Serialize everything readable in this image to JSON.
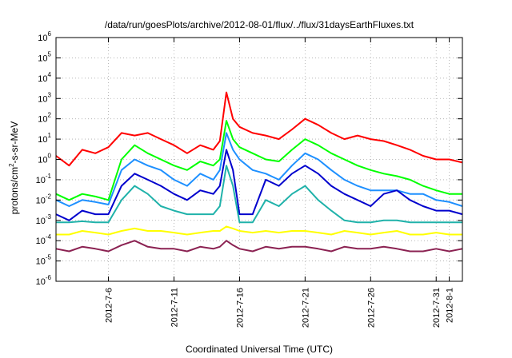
{
  "chart_data": {
    "type": "line",
    "title": "/data/run/goesPlots/archive/2012-08-01/flux/../flux/31daysEarthFluxes.txt",
    "xlabel": "Coordinated Universal Time (UTC)",
    "ylabel_parts": {
      "base": "protons/cm",
      "sup": "2",
      "rest": "-s-sr-MeV"
    },
    "y_scale": "log",
    "ylim": [
      1e-06,
      1000000.0
    ],
    "y_ticks": [
      {
        "value": 1e-06,
        "base": "10",
        "exp": "-6"
      },
      {
        "value": 1e-05,
        "base": "10",
        "exp": "-5"
      },
      {
        "value": 0.0001,
        "base": "10",
        "exp": "-4"
      },
      {
        "value": 0.001,
        "base": "10",
        "exp": "-3"
      },
      {
        "value": 0.01,
        "base": "10",
        "exp": "-2"
      },
      {
        "value": 0.1,
        "base": "10",
        "exp": "-1"
      },
      {
        "value": 1,
        "base": "10",
        "exp": "0"
      },
      {
        "value": 10.0,
        "base": "10",
        "exp": "1"
      },
      {
        "value": 100.0,
        "base": "10",
        "exp": "2"
      },
      {
        "value": 1000.0,
        "base": "10",
        "exp": "3"
      },
      {
        "value": 10000.0,
        "base": "10",
        "exp": "4"
      },
      {
        "value": 100000.0,
        "base": "10",
        "exp": "5"
      },
      {
        "value": 1000000.0,
        "base": "10",
        "exp": "6"
      }
    ],
    "xlim": [
      "2012-07-02",
      "2012-08-02"
    ],
    "x_ticks": [
      "2012-7-6",
      "2012-7-11",
      "2012-7-16",
      "2012-7-21",
      "2012-7-26",
      "2012-7-31",
      "2012-8-1"
    ],
    "grid": true,
    "series": [
      {
        "color": "#ff0000",
        "x": [
          "2012-07-02",
          "2012-07-03",
          "2012-07-04",
          "2012-07-05",
          "2012-07-06",
          "2012-07-07",
          "2012-07-08",
          "2012-07-09",
          "2012-07-10",
          "2012-07-11",
          "2012-07-12",
          "2012-07-13",
          "2012-07-14",
          "2012-07-14T12:00",
          "2012-07-15",
          "2012-07-15T12:00",
          "2012-07-16",
          "2012-07-17",
          "2012-07-18",
          "2012-07-19",
          "2012-07-20",
          "2012-07-21",
          "2012-07-22",
          "2012-07-23",
          "2012-07-24",
          "2012-07-25",
          "2012-07-26",
          "2012-07-27",
          "2012-07-28",
          "2012-07-29",
          "2012-07-30",
          "2012-07-31",
          "2012-08-01",
          "2012-08-02"
        ],
        "y": [
          1.5,
          0.5,
          3,
          2,
          4,
          20,
          15,
          20,
          10,
          5,
          2,
          5,
          3,
          8,
          2000,
          100,
          40,
          20,
          15,
          10,
          30,
          100,
          50,
          20,
          10,
          15,
          10,
          8,
          5,
          3,
          1.5,
          1,
          1,
          0.7
        ]
      },
      {
        "color": "#00ff00",
        "x": [
          "2012-07-02",
          "2012-07-03",
          "2012-07-04",
          "2012-07-05",
          "2012-07-06",
          "2012-07-07",
          "2012-07-08",
          "2012-07-09",
          "2012-07-10",
          "2012-07-11",
          "2012-07-12",
          "2012-07-13",
          "2012-07-14",
          "2012-07-14T12:00",
          "2012-07-15",
          "2012-07-15T12:00",
          "2012-07-16",
          "2012-07-17",
          "2012-07-18",
          "2012-07-19",
          "2012-07-20",
          "2012-07-21",
          "2012-07-22",
          "2012-07-23",
          "2012-07-24",
          "2012-07-25",
          "2012-07-26",
          "2012-07-27",
          "2012-07-28",
          "2012-07-29",
          "2012-07-30",
          "2012-07-31",
          "2012-08-01",
          "2012-08-02"
        ],
        "y": [
          0.02,
          0.01,
          0.02,
          0.015,
          0.01,
          1,
          5,
          2,
          1,
          0.5,
          0.3,
          0.8,
          0.5,
          1,
          80,
          10,
          4,
          2,
          1,
          0.8,
          3,
          10,
          5,
          2,
          1,
          0.5,
          0.3,
          0.2,
          0.15,
          0.1,
          0.05,
          0.03,
          0.02,
          0.02
        ]
      },
      {
        "color": "#1e90ff",
        "x": [
          "2012-07-02",
          "2012-07-03",
          "2012-07-04",
          "2012-07-05",
          "2012-07-06",
          "2012-07-07",
          "2012-07-08",
          "2012-07-09",
          "2012-07-10",
          "2012-07-11",
          "2012-07-12",
          "2012-07-13",
          "2012-07-14",
          "2012-07-14T12:00",
          "2012-07-15",
          "2012-07-15T12:00",
          "2012-07-16",
          "2012-07-17",
          "2012-07-18",
          "2012-07-19",
          "2012-07-20",
          "2012-07-21",
          "2012-07-22",
          "2012-07-23",
          "2012-07-24",
          "2012-07-25",
          "2012-07-26",
          "2012-07-27",
          "2012-07-28",
          "2012-07-29",
          "2012-07-30",
          "2012-07-31",
          "2012-08-01",
          "2012-08-02"
        ],
        "y": [
          0.01,
          0.005,
          0.01,
          0.008,
          0.006,
          0.3,
          1,
          0.5,
          0.3,
          0.1,
          0.05,
          0.2,
          0.1,
          0.3,
          20,
          3,
          1,
          0.3,
          0.2,
          0.1,
          0.5,
          2,
          1,
          0.3,
          0.1,
          0.05,
          0.03,
          0.03,
          0.03,
          0.02,
          0.02,
          0.01,
          0.008,
          0.005
        ]
      },
      {
        "color": "#0000cd",
        "x": [
          "2012-07-02",
          "2012-07-03",
          "2012-07-04",
          "2012-07-05",
          "2012-07-06",
          "2012-07-07",
          "2012-07-08",
          "2012-07-09",
          "2012-07-10",
          "2012-07-11",
          "2012-07-12",
          "2012-07-13",
          "2012-07-14",
          "2012-07-14T12:00",
          "2012-07-15",
          "2012-07-15T12:00",
          "2012-07-16",
          "2012-07-17",
          "2012-07-18",
          "2012-07-19",
          "2012-07-20",
          "2012-07-21",
          "2012-07-22",
          "2012-07-23",
          "2012-07-24",
          "2012-07-25",
          "2012-07-26",
          "2012-07-27",
          "2012-07-28",
          "2012-07-29",
          "2012-07-30",
          "2012-07-31",
          "2012-08-01",
          "2012-08-02"
        ],
        "y": [
          0.002,
          0.001,
          0.003,
          0.002,
          0.002,
          0.05,
          0.2,
          0.1,
          0.05,
          0.02,
          0.01,
          0.03,
          0.02,
          0.05,
          3,
          0.3,
          0.002,
          0.002,
          0.1,
          0.05,
          0.2,
          0.5,
          0.2,
          0.05,
          0.02,
          0.01,
          0.005,
          0.02,
          0.03,
          0.01,
          0.005,
          0.003,
          0.003,
          0.002
        ]
      },
      {
        "color": "#20b2aa",
        "x": [
          "2012-07-02",
          "2012-07-03",
          "2012-07-04",
          "2012-07-05",
          "2012-07-06",
          "2012-07-07",
          "2012-07-08",
          "2012-07-09",
          "2012-07-10",
          "2012-07-11",
          "2012-07-12",
          "2012-07-13",
          "2012-07-14",
          "2012-07-14T12:00",
          "2012-07-15",
          "2012-07-15T12:00",
          "2012-07-16",
          "2012-07-17",
          "2012-07-18",
          "2012-07-19",
          "2012-07-20",
          "2012-07-21",
          "2012-07-22",
          "2012-07-23",
          "2012-07-24",
          "2012-07-25",
          "2012-07-26",
          "2012-07-27",
          "2012-07-28",
          "2012-07-29",
          "2012-07-30",
          "2012-07-31",
          "2012-08-01",
          "2012-08-02"
        ],
        "y": [
          0.0008,
          0.0008,
          0.0009,
          0.0008,
          0.0008,
          0.01,
          0.05,
          0.02,
          0.005,
          0.003,
          0.002,
          0.002,
          0.002,
          0.005,
          0.5,
          0.05,
          0.0008,
          0.0008,
          0.01,
          0.005,
          0.02,
          0.05,
          0.01,
          0.003,
          0.001,
          0.0008,
          0.0008,
          0.001,
          0.001,
          0.0008,
          0.0008,
          0.0008,
          0.0008,
          0.0008
        ]
      },
      {
        "color": "#ffff00",
        "x": [
          "2012-07-02",
          "2012-07-03",
          "2012-07-04",
          "2012-07-05",
          "2012-07-06",
          "2012-07-07",
          "2012-07-08",
          "2012-07-09",
          "2012-07-10",
          "2012-07-11",
          "2012-07-12",
          "2012-07-13",
          "2012-07-14",
          "2012-07-14T12:00",
          "2012-07-15",
          "2012-07-15T12:00",
          "2012-07-16",
          "2012-07-17",
          "2012-07-18",
          "2012-07-19",
          "2012-07-20",
          "2012-07-21",
          "2012-07-22",
          "2012-07-23",
          "2012-07-24",
          "2012-07-25",
          "2012-07-26",
          "2012-07-27",
          "2012-07-28",
          "2012-07-29",
          "2012-07-30",
          "2012-07-31",
          "2012-08-01",
          "2012-08-02"
        ],
        "y": [
          0.0002,
          0.0002,
          0.0003,
          0.00025,
          0.0002,
          0.0003,
          0.0004,
          0.0003,
          0.0003,
          0.00025,
          0.0002,
          0.00025,
          0.0003,
          0.0003,
          0.0005,
          0.0004,
          0.0003,
          0.00025,
          0.0003,
          0.00025,
          0.0003,
          0.0003,
          0.00025,
          0.0002,
          0.0003,
          0.00025,
          0.0002,
          0.00025,
          0.0003,
          0.0002,
          0.0002,
          0.00025,
          0.0002,
          0.0002
        ]
      },
      {
        "color": "#8b2252",
        "x": [
          "2012-07-02",
          "2012-07-03",
          "2012-07-04",
          "2012-07-05",
          "2012-07-06",
          "2012-07-07",
          "2012-07-08",
          "2012-07-09",
          "2012-07-10",
          "2012-07-11",
          "2012-07-12",
          "2012-07-13",
          "2012-07-14",
          "2012-07-14T12:00",
          "2012-07-15",
          "2012-07-15T12:00",
          "2012-07-16",
          "2012-07-17",
          "2012-07-18",
          "2012-07-19",
          "2012-07-20",
          "2012-07-21",
          "2012-07-22",
          "2012-07-23",
          "2012-07-24",
          "2012-07-25",
          "2012-07-26",
          "2012-07-27",
          "2012-07-28",
          "2012-07-29",
          "2012-07-30",
          "2012-07-31",
          "2012-08-01",
          "2012-08-02"
        ],
        "y": [
          4e-05,
          3e-05,
          5e-05,
          4e-05,
          3e-05,
          6e-05,
          0.0001,
          5e-05,
          4e-05,
          4e-05,
          3e-05,
          5e-05,
          4e-05,
          5e-05,
          0.0001,
          6e-05,
          4e-05,
          3e-05,
          5e-05,
          4e-05,
          5e-05,
          5e-05,
          4e-05,
          3e-05,
          5e-05,
          4e-05,
          4e-05,
          5e-05,
          4e-05,
          3e-05,
          3e-05,
          4e-05,
          3e-05,
          4e-05
        ]
      }
    ]
  }
}
